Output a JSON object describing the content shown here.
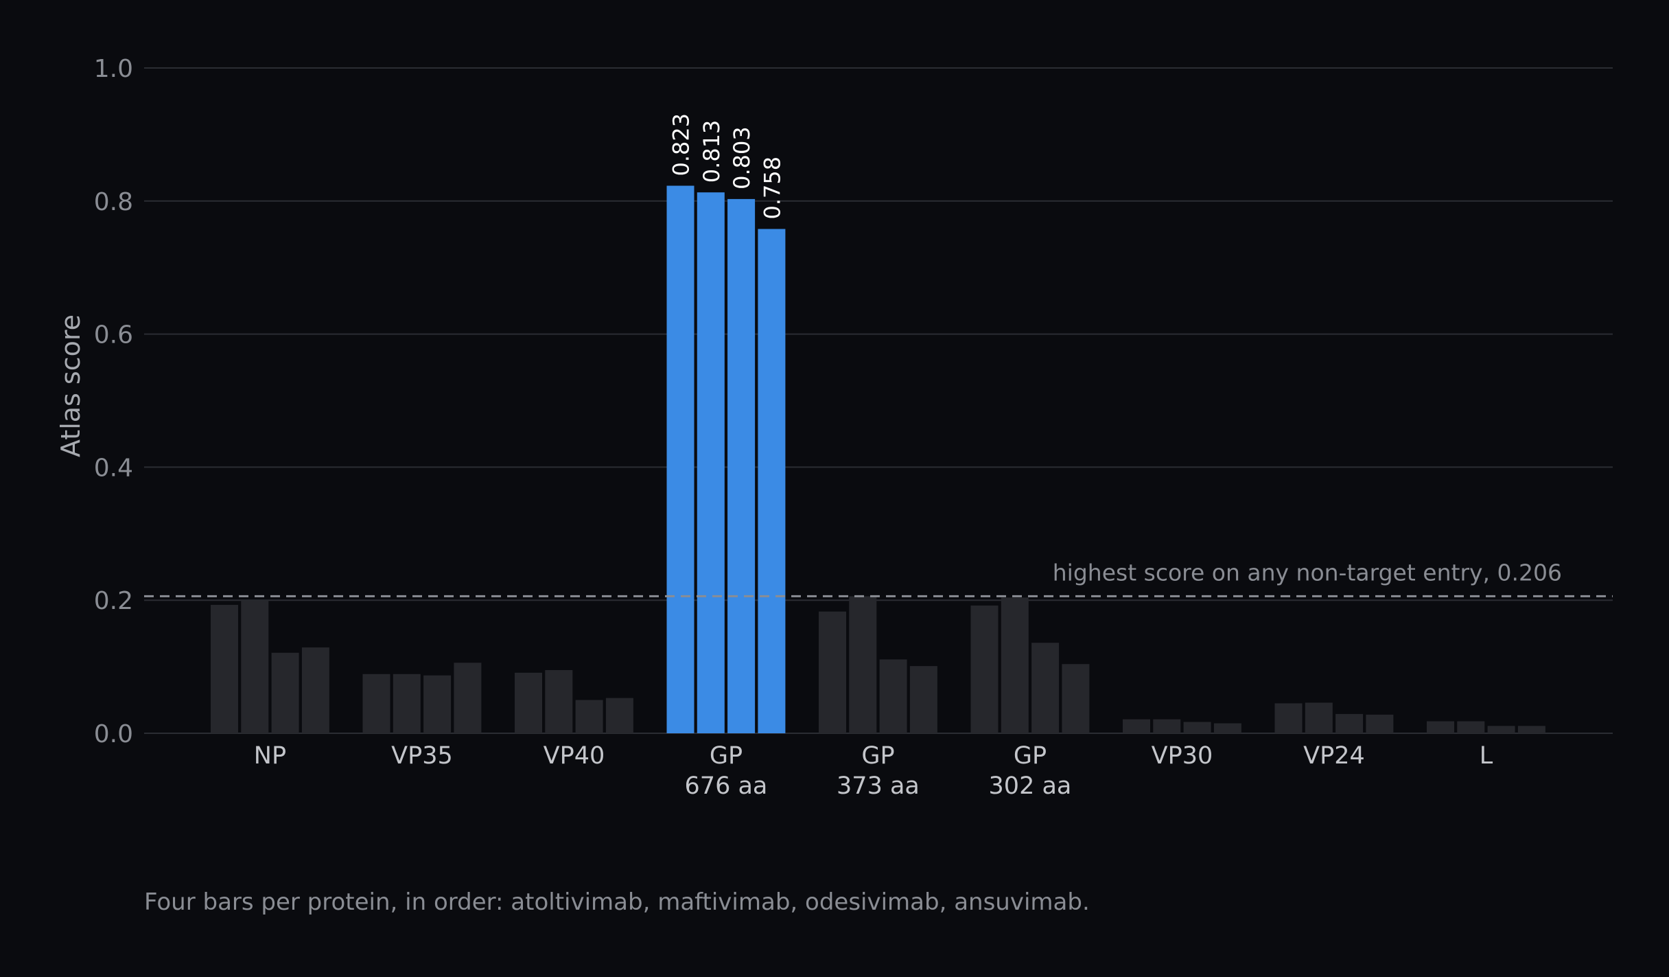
{
  "chart_data": {
    "type": "bar",
    "title": "",
    "xlabel": "",
    "ylabel": "Atlas score",
    "ylim": [
      0,
      1.0
    ],
    "yticks": [
      "0.0",
      "0.2",
      "0.4",
      "0.6",
      "0.8",
      "1.0"
    ],
    "grid": true,
    "categories": [
      {
        "line1": "NP",
        "line2": ""
      },
      {
        "line1": "VP35",
        "line2": ""
      },
      {
        "line1": "VP40",
        "line2": ""
      },
      {
        "line1": "GP",
        "line2": "676 aa"
      },
      {
        "line1": "GP",
        "line2": "373 aa"
      },
      {
        "line1": "GP",
        "line2": "302 aa"
      },
      {
        "line1": "VP30",
        "line2": ""
      },
      {
        "line1": "VP24",
        "line2": ""
      },
      {
        "line1": "L",
        "line2": ""
      }
    ],
    "series": [
      {
        "values": [
          0.193,
          0.089,
          0.091,
          0.823,
          0.183,
          0.192,
          0.021,
          0.045,
          0.018
        ]
      },
      {
        "values": [
          0.2,
          0.089,
          0.095,
          0.813,
          0.206,
          0.204,
          0.021,
          0.046,
          0.018
        ]
      },
      {
        "values": [
          0.121,
          0.087,
          0.05,
          0.803,
          0.111,
          0.136,
          0.017,
          0.029,
          0.011
        ]
      },
      {
        "values": [
          0.129,
          0.106,
          0.053,
          0.758,
          0.101,
          0.104,
          0.015,
          0.028,
          0.011
        ]
      }
    ],
    "highlight_category_index": 3,
    "highlight_labels": [
      "0.823",
      "0.813",
      "0.803",
      "0.758"
    ],
    "reference_line": {
      "value": 0.206,
      "label": "highest score on any non-target entry, 0.206"
    },
    "colors": {
      "highlight": "#3b8be5",
      "muted": "#26272c",
      "grid": "#2b2d33",
      "reference": "#8a8d94",
      "background": "#0a0b0f"
    }
  },
  "caption": "Four bars per protein, in order: atoltivimab, maftivimab, odesivimab, ansuvimab."
}
